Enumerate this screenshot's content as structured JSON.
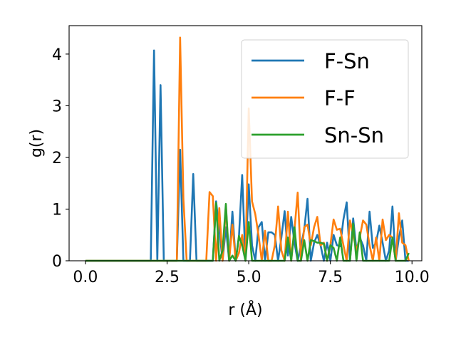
{
  "chart_data": {
    "type": "line",
    "title": "",
    "xlabel": "r (Å)",
    "ylabel": "g(r)",
    "xlim": [
      -0.5,
      10.3
    ],
    "ylim": [
      0,
      4.55
    ],
    "xticks": [
      0,
      2.5,
      5,
      7.5,
      10
    ],
    "xtick_labels": [
      "0.0",
      "2.5",
      "5.0",
      "7.5",
      "10.0"
    ],
    "yticks": [
      0,
      1,
      2,
      3,
      4
    ],
    "ytick_labels": [
      "0",
      "1",
      "2",
      "3",
      "4"
    ],
    "grid": false,
    "legend_position": "top-right",
    "series": [
      {
        "name": "F-Sn",
        "color": "#1f77b4",
        "x": [
          0,
          2.0,
          2.1,
          2.2,
          2.3,
          2.4,
          2.8,
          2.9,
          3.0,
          3.2,
          3.3,
          3.4,
          3.9,
          4.0,
          4.1,
          4.2,
          4.3,
          4.4,
          4.5,
          4.6,
          4.7,
          4.8,
          4.9,
          5.0,
          5.1,
          5.2,
          5.3,
          5.4,
          5.5,
          5.6,
          5.7,
          5.8,
          5.9,
          6.0,
          6.1,
          6.2,
          6.3,
          6.4,
          6.5,
          6.6,
          6.7,
          6.8,
          6.9,
          7.0,
          7.1,
          7.2,
          7.3,
          7.4,
          7.5,
          7.6,
          7.7,
          7.8,
          7.9,
          8.0,
          8.1,
          8.2,
          8.3,
          8.4,
          8.5,
          8.6,
          8.7,
          8.8,
          8.9,
          9.0,
          9.1,
          9.2,
          9.3,
          9.4,
          9.5,
          9.6,
          9.7,
          9.8,
          9.9
        ],
        "y": [
          0,
          0,
          4.07,
          0,
          3.4,
          0,
          0,
          2.15,
          0,
          0,
          1.68,
          0,
          0,
          1.15,
          0.6,
          0.0,
          0.65,
          0.0,
          0.95,
          0.0,
          0.45,
          1.66,
          0.0,
          1.48,
          0.3,
          0.0,
          0.65,
          0.75,
          0.0,
          0.55,
          0.55,
          0.5,
          0.0,
          0.45,
          0.96,
          0.1,
          0.85,
          0.35,
          0.0,
          0.3,
          0.6,
          1.2,
          0.0,
          0.35,
          0.5,
          0.3,
          0.0,
          0.35,
          0.0,
          0.5,
          0.3,
          0.28,
          0.8,
          1.13,
          0.0,
          0.82,
          0.2,
          0.45,
          0.3,
          0.0,
          0.95,
          0.25,
          0.35,
          0.68,
          0.35,
          0.0,
          0.2,
          1.05,
          0.0,
          0.45,
          0.78,
          0.0,
          0.0
        ]
      },
      {
        "name": "F-F",
        "color": "#ff7f0e",
        "x": [
          0,
          2.8,
          2.9,
          3.0,
          3.1,
          3.7,
          3.8,
          3.9,
          4.0,
          4.1,
          4.2,
          4.3,
          4.4,
          4.5,
          4.6,
          4.7,
          4.8,
          4.9,
          5.0,
          5.1,
          5.2,
          5.3,
          5.4,
          5.5,
          5.6,
          5.7,
          5.8,
          5.9,
          6.0,
          6.1,
          6.2,
          6.3,
          6.4,
          6.5,
          6.6,
          6.7,
          6.8,
          6.9,
          7.0,
          7.1,
          7.2,
          7.3,
          7.4,
          7.5,
          7.6,
          7.7,
          7.8,
          7.9,
          8.0,
          8.1,
          8.2,
          8.3,
          8.4,
          8.5,
          8.6,
          8.7,
          8.8,
          8.9,
          9.0,
          9.1,
          9.2,
          9.3,
          9.4,
          9.5,
          9.6,
          9.7,
          9.8,
          9.9
        ],
        "y": [
          0,
          0,
          4.32,
          1.2,
          0,
          0,
          1.33,
          1.25,
          0.0,
          1.02,
          0.0,
          1.05,
          0.0,
          0.7,
          0.0,
          0.15,
          0.5,
          0.0,
          2.95,
          1.15,
          0.9,
          0.5,
          0.0,
          0.58,
          0.0,
          0.0,
          0.3,
          1.05,
          0.2,
          0.0,
          0.95,
          0.0,
          0.6,
          1.32,
          0.0,
          0.65,
          0.7,
          0.3,
          0.65,
          0.85,
          0.3,
          0.35,
          0.0,
          0.3,
          0.8,
          0.6,
          0.62,
          0.3,
          0.0,
          0.78,
          0.5,
          0.2,
          0.45,
          0.78,
          0.7,
          0.3,
          0.0,
          0.45,
          0.0,
          0.8,
          0.4,
          0.5,
          0.45,
          0.0,
          0.92,
          0.35,
          0.3,
          0.0
        ]
      },
      {
        "name": "Sn-Sn",
        "color": "#2ca02c",
        "x": [
          0,
          3.9,
          4.0,
          4.1,
          4.2,
          4.3,
          4.4,
          4.5,
          4.6,
          4.7,
          4.8,
          4.9,
          5.0,
          5.1,
          5.2,
          5.3,
          5.4,
          5.5,
          5.6,
          5.7,
          5.8,
          5.9,
          6.0,
          6.1,
          6.2,
          6.3,
          6.4,
          6.5,
          6.6,
          6.7,
          6.8,
          6.9,
          7.0,
          7.1,
          7.2,
          7.3,
          7.4,
          7.5,
          7.6,
          7.7,
          7.8,
          7.9,
          8.0,
          8.1,
          8.2,
          8.3,
          8.4,
          8.5,
          8.6,
          8.7,
          8.8,
          8.9,
          9.0,
          9.1,
          9.2,
          9.3,
          9.4,
          9.5,
          9.6,
          9.7,
          9.8,
          9.9
        ],
        "y": [
          0,
          0,
          1.12,
          0.0,
          0.2,
          1.1,
          0.0,
          0.1,
          0.0,
          0.48,
          0.3,
          0.0,
          0.75,
          0.0,
          0.0,
          0.0,
          0.0,
          0.0,
          0.0,
          0.0,
          0.0,
          0.0,
          0.0,
          0.0,
          0.45,
          0.0,
          0.65,
          0.0,
          0.0,
          0.4,
          0.0,
          0.4,
          0.38,
          0.35,
          0.35,
          0.33,
          0.0,
          0.3,
          0.25,
          0.0,
          0.45,
          0.0,
          0.0,
          0.0,
          0.72,
          0.0,
          0.55,
          0.0,
          0.0,
          0.0,
          0.0,
          0.0,
          0.0,
          0.0,
          0.0,
          0.0,
          0.45,
          0.0,
          0.0,
          0.0,
          0.0,
          0.15
        ]
      }
    ]
  }
}
